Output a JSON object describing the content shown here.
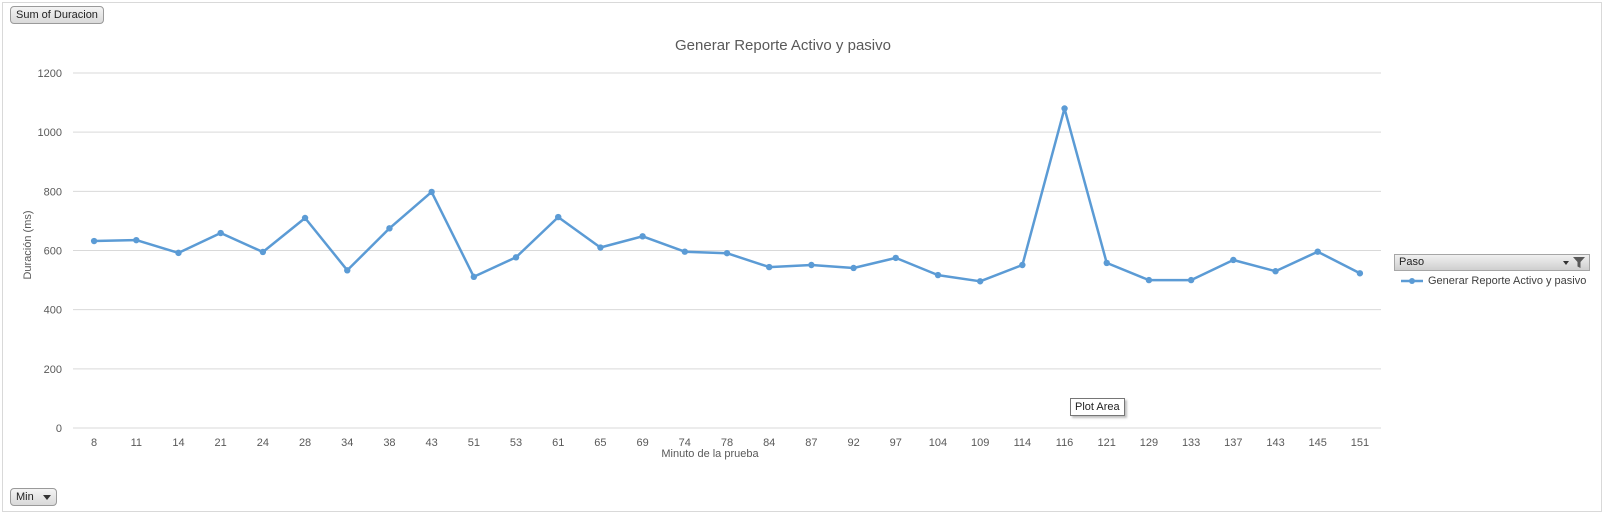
{
  "pivot": {
    "value_field": "Sum of Duracion",
    "axis_field": "Min",
    "legend_field": "Paso"
  },
  "tooltip": "Plot Area",
  "icons": {
    "filter": "filter-icon",
    "dropdown": "chevron-down-icon"
  },
  "colors": {
    "series": "#5b9bd5",
    "gridline": "#d9d9d9",
    "text": "#595959"
  },
  "chart_data": {
    "type": "line",
    "title": "Generar Reporte Activo y pasivo",
    "xlabel": "Minuto de la prueba",
    "ylabel": "Duración (ms)",
    "ylim": [
      0,
      1200
    ],
    "yticks": [
      0,
      200,
      400,
      600,
      800,
      1000,
      1200
    ],
    "grid": true,
    "legend": "right",
    "categories": [
      "8",
      "11",
      "14",
      "21",
      "24",
      "28",
      "34",
      "38",
      "43",
      "51",
      "53",
      "61",
      "65",
      "69",
      "74",
      "78",
      "84",
      "87",
      "92",
      "97",
      "104",
      "109",
      "114",
      "116",
      "121",
      "129",
      "133",
      "137",
      "143",
      "145",
      "151"
    ],
    "series": [
      {
        "name": "Generar Reporte Activo y pasivo",
        "values": [
          632,
          635,
          592,
          659,
          595,
          710,
          533,
          675,
          798,
          511,
          577,
          713,
          610,
          648,
          596,
          591,
          544,
          551,
          541,
          575,
          517,
          496,
          551,
          1080,
          558,
          500,
          500,
          568,
          530,
          596,
          523
        ]
      }
    ]
  }
}
